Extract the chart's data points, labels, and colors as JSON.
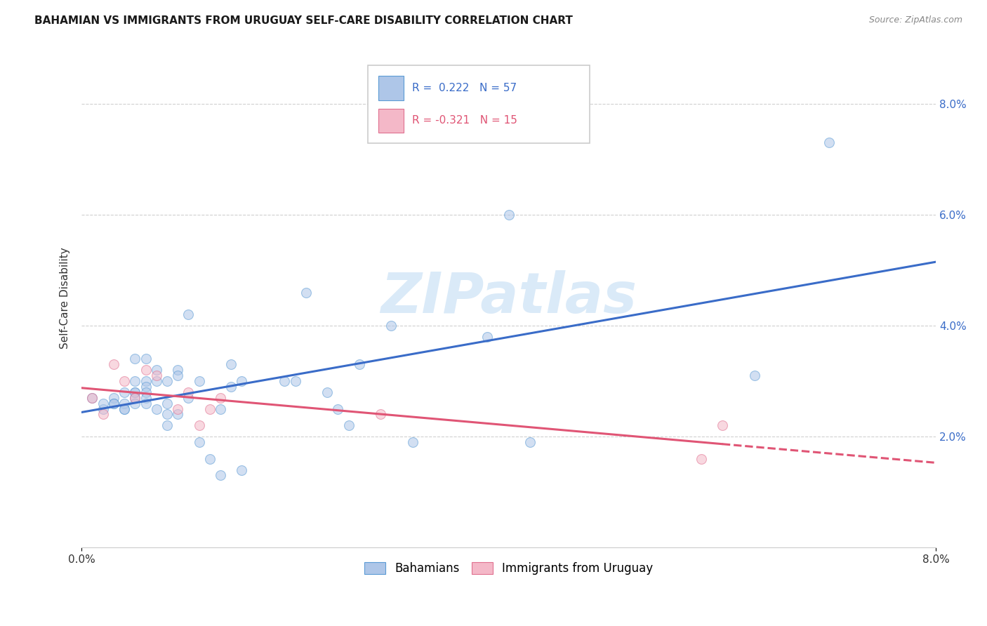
{
  "title": "BAHAMIAN VS IMMIGRANTS FROM URUGUAY SELF-CARE DISABILITY CORRELATION CHART",
  "source": "Source: ZipAtlas.com",
  "ylabel": "Self-Care Disability",
  "xlim": [
    0.0,
    0.08
  ],
  "ylim": [
    0.0,
    0.09
  ],
  "yticks": [
    0.02,
    0.04,
    0.06,
    0.08
  ],
  "ytick_labels": [
    "2.0%",
    "4.0%",
    "6.0%",
    "8.0%"
  ],
  "xtick_labels": [
    "0.0%",
    "8.0%"
  ],
  "bahamian_color": "#aec6e8",
  "bahamian_edge": "#5b9bd5",
  "uruguay_color": "#f4b8c8",
  "uruguay_edge": "#e07090",
  "blue_line_color": "#3a6cc8",
  "pink_line_color": "#e05575",
  "watermark_color": "#daeaf8",
  "watermark_text": "ZIPatlas",
  "bahamian_x": [
    0.001,
    0.002,
    0.002,
    0.003,
    0.003,
    0.003,
    0.004,
    0.004,
    0.004,
    0.004,
    0.005,
    0.005,
    0.005,
    0.005,
    0.005,
    0.005,
    0.006,
    0.006,
    0.006,
    0.006,
    0.006,
    0.006,
    0.007,
    0.007,
    0.007,
    0.008,
    0.008,
    0.008,
    0.008,
    0.009,
    0.009,
    0.009,
    0.01,
    0.01,
    0.011,
    0.011,
    0.012,
    0.013,
    0.013,
    0.014,
    0.014,
    0.015,
    0.015,
    0.019,
    0.02,
    0.021,
    0.023,
    0.024,
    0.025,
    0.026,
    0.029,
    0.031,
    0.038,
    0.04,
    0.042,
    0.063,
    0.07
  ],
  "bahamian_y": [
    0.027,
    0.025,
    0.026,
    0.027,
    0.026,
    0.026,
    0.028,
    0.026,
    0.025,
    0.025,
    0.034,
    0.03,
    0.028,
    0.028,
    0.027,
    0.026,
    0.034,
    0.03,
    0.029,
    0.028,
    0.027,
    0.026,
    0.032,
    0.03,
    0.025,
    0.03,
    0.026,
    0.024,
    0.022,
    0.032,
    0.031,
    0.024,
    0.042,
    0.027,
    0.03,
    0.019,
    0.016,
    0.025,
    0.013,
    0.033,
    0.029,
    0.03,
    0.014,
    0.03,
    0.03,
    0.046,
    0.028,
    0.025,
    0.022,
    0.033,
    0.04,
    0.019,
    0.038,
    0.06,
    0.019,
    0.031,
    0.073
  ],
  "uruguay_x": [
    0.001,
    0.002,
    0.003,
    0.004,
    0.005,
    0.006,
    0.007,
    0.009,
    0.01,
    0.011,
    0.012,
    0.013,
    0.028,
    0.058,
    0.06
  ],
  "uruguay_y": [
    0.027,
    0.024,
    0.033,
    0.03,
    0.027,
    0.032,
    0.031,
    0.025,
    0.028,
    0.022,
    0.025,
    0.027,
    0.024,
    0.016,
    0.022
  ],
  "marker_size": 100,
  "alpha": 0.55,
  "line_width": 2.2
}
